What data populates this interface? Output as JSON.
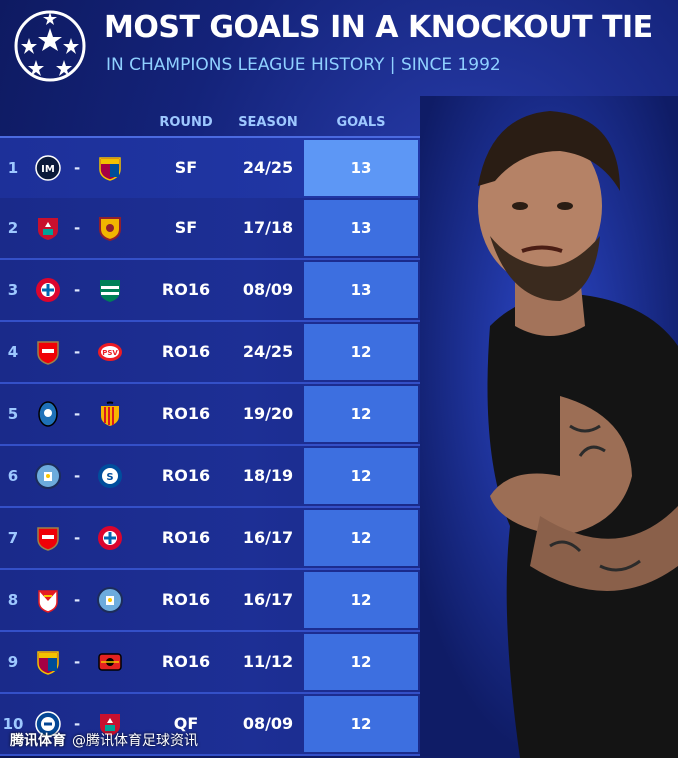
{
  "header": {
    "title": "MOST GOALS IN A KNOCKOUT TIE",
    "subtitle": "IN CHAMPIONS LEAGUE HISTORY | SINCE 1992"
  },
  "columns": {
    "round": "ROUND",
    "season": "SEASON",
    "goals": "GOALS"
  },
  "rows": [
    {
      "rank": "1",
      "club1": "inter-crest",
      "club2": "barcelona-crest",
      "round": "SF",
      "season": "24/25",
      "goals": "13"
    },
    {
      "rank": "2",
      "club1": "liverpool-crest",
      "club2": "roma-crest",
      "round": "SF",
      "season": "17/18",
      "goals": "13"
    },
    {
      "rank": "3",
      "club1": "bayern-crest",
      "club2": "sporting-crest",
      "round": "RO16",
      "season": "08/09",
      "goals": "13"
    },
    {
      "rank": "4",
      "club1": "arsenal-crest",
      "club2": "psv-crest",
      "round": "RO16",
      "season": "24/25",
      "goals": "12"
    },
    {
      "rank": "5",
      "club1": "atalanta-crest",
      "club2": "valencia-crest",
      "round": "RO16",
      "season": "19/20",
      "goals": "12"
    },
    {
      "rank": "6",
      "club1": "man-city-crest",
      "club2": "schalke-crest",
      "round": "RO16",
      "season": "18/19",
      "goals": "12"
    },
    {
      "rank": "7",
      "club1": "arsenal-crest",
      "club2": "bayern-crest",
      "round": "RO16",
      "season": "16/17",
      "goals": "12"
    },
    {
      "rank": "8",
      "club1": "monaco-crest",
      "club2": "man-city-crest",
      "round": "RO16",
      "season": "16/17",
      "goals": "12"
    },
    {
      "rank": "9",
      "club1": "barcelona-crest",
      "club2": "leverkusen-crest",
      "round": "RO16",
      "season": "11/12",
      "goals": "12"
    },
    {
      "rank": "10",
      "club1": "chelsea-crest",
      "club2": "liverpool-crest",
      "round": "QF",
      "season": "08/09",
      "goals": "12"
    }
  ],
  "watermark": {
    "brand": "腾讯体育",
    "handle": "@腾讯体育足球资讯"
  },
  "colors": {
    "background": "#14237a",
    "goals_cell": "#3d6fe0",
    "goals_cell_highlight": "#5d97f5",
    "subtitle": "#8fd0ff"
  }
}
